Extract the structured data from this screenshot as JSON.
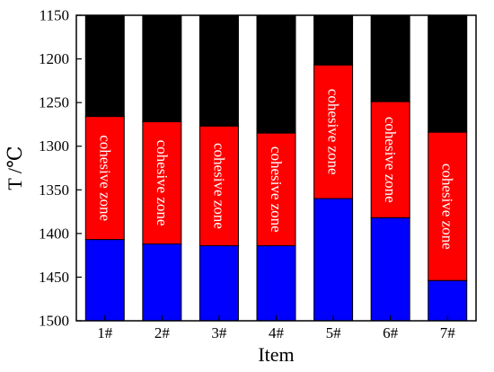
{
  "chart_data": {
    "type": "bar",
    "subtype": "stacked-range",
    "categories": [
      "1#",
      "2#",
      "3#",
      "4#",
      "5#",
      "6#",
      "7#"
    ],
    "xlabel": "Item",
    "ylabel": "T /℃",
    "ylim": [
      1150,
      1500
    ],
    "y_axis_inverted": true,
    "yticks": [
      1150,
      1200,
      1250,
      1300,
      1350,
      1400,
      1450,
      1500
    ],
    "grid": false,
    "zone_label": "cohesive zone",
    "series": [
      {
        "values_start": [
          1150,
          1150,
          1150,
          1150,
          1150,
          1150,
          1150
        ],
        "values_end": [
          1266,
          1272,
          1277,
          1285,
          1207,
          1249,
          1284
        ]
      },
      {
        "values_start": [
          1266,
          1272,
          1277,
          1285,
          1207,
          1249,
          1284
        ],
        "values_end": [
          1407,
          1412,
          1414,
          1414,
          1360,
          1382,
          1454
        ]
      },
      {
        "values_start": [
          1407,
          1412,
          1414,
          1414,
          1360,
          1382,
          1454
        ],
        "values_end": [
          1500,
          1500,
          1500,
          1500,
          1500,
          1500,
          1500
        ]
      }
    ],
    "colors": [
      "#000000",
      "#ff0000",
      "#0000ff"
    ]
  }
}
